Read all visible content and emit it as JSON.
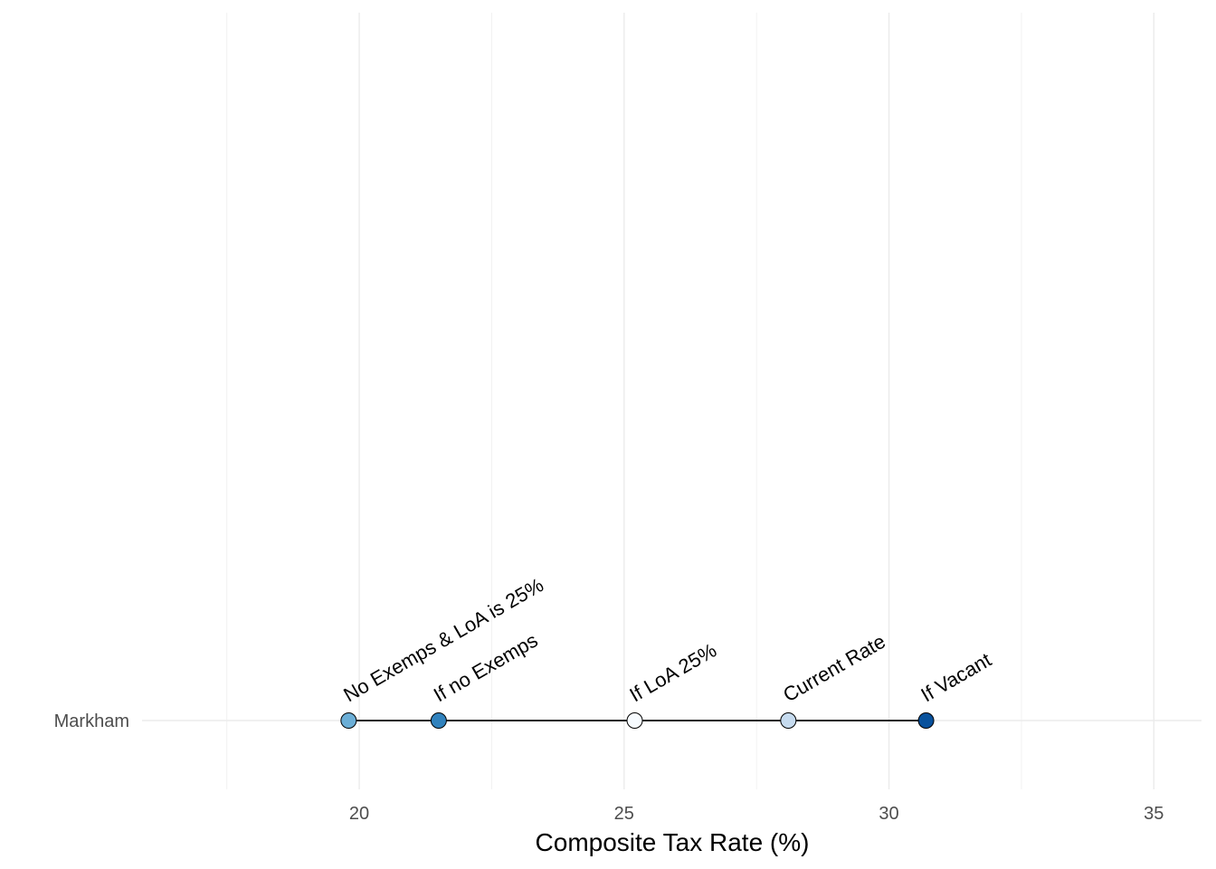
{
  "chart_data": {
    "type": "scatter",
    "title": "",
    "xlabel": "Composite Tax Rate (%)",
    "ylabel": "",
    "xlim": [
      15.9,
      35.9
    ],
    "x_major_ticks": [
      20,
      25,
      30,
      35
    ],
    "x_minor_ticks": [
      17.5,
      22.5,
      27.5,
      32.5
    ],
    "grid": true,
    "legend": "none",
    "categories": [
      "Markham"
    ],
    "range": {
      "category": "Markham",
      "from": 19.8,
      "to": 30.7
    },
    "series": [
      {
        "label": "No Exemps & LoA is 25%",
        "category": "Markham",
        "x": 19.8,
        "color": "#6baed6"
      },
      {
        "label": "If no Exemps",
        "category": "Markham",
        "x": 21.5,
        "color": "#3182bd"
      },
      {
        "label": "If LoA 25%",
        "category": "Markham",
        "x": 25.2,
        "color": "#f7fbff"
      },
      {
        "label": "Current Rate",
        "category": "Markham",
        "x": 28.1,
        "color": "#c6dbef"
      },
      {
        "label": "If Vacant",
        "category": "Markham",
        "x": 30.7,
        "color": "#08519c"
      }
    ]
  }
}
